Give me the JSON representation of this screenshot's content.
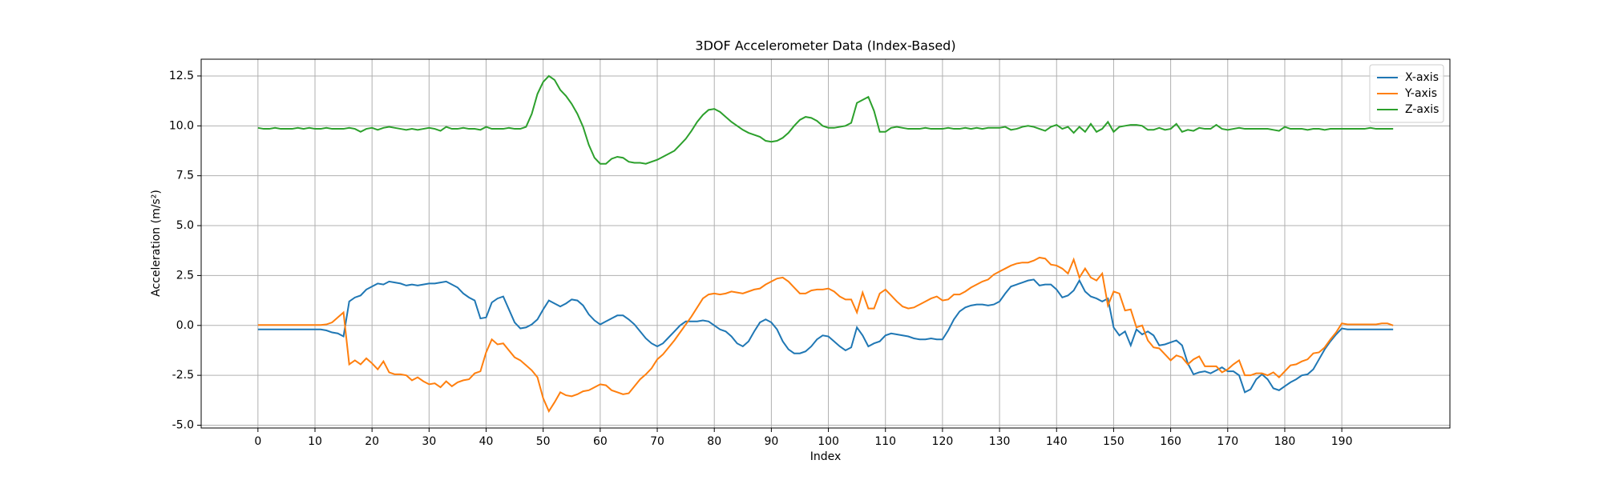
{
  "chart_data": {
    "type": "line",
    "title": "3DOF Accelerometer Data (Index-Based)",
    "x_label": "Index",
    "y_label": "Acceleration (m/s²)",
    "x": [
      0,
      1,
      2,
      3,
      4,
      5,
      6,
      7,
      8,
      9,
      10,
      11,
      12,
      13,
      14,
      15,
      16,
      17,
      18,
      19,
      20,
      21,
      22,
      23,
      24,
      25,
      26,
      27,
      28,
      29,
      30,
      31,
      32,
      33,
      34,
      35,
      36,
      37,
      38,
      39,
      40,
      41,
      42,
      43,
      44,
      45,
      46,
      47,
      48,
      49,
      50,
      51,
      52,
      53,
      54,
      55,
      56,
      57,
      58,
      59,
      60,
      61,
      62,
      63,
      64,
      65,
      66,
      67,
      68,
      69,
      70,
      71,
      72,
      73,
      74,
      75,
      76,
      77,
      78,
      79,
      80,
      81,
      82,
      83,
      84,
      85,
      86,
      87,
      88,
      89,
      90,
      91,
      92,
      93,
      94,
      95,
      96,
      97,
      98,
      99,
      100,
      101,
      102,
      103,
      104,
      105,
      106,
      107,
      108,
      109,
      110,
      111,
      112,
      113,
      114,
      115,
      116,
      117,
      118,
      119,
      120,
      121,
      122,
      123,
      124,
      125,
      126,
      127,
      128,
      129,
      130,
      131,
      132,
      133,
      134,
      135,
      136,
      137,
      138,
      139,
      140,
      141,
      142,
      143,
      144,
      145,
      146,
      147,
      148,
      149,
      150,
      151,
      152,
      153,
      154,
      155,
      156,
      157,
      158,
      159,
      160,
      161,
      162,
      163,
      164,
      165,
      166,
      167,
      168,
      169,
      170,
      171,
      172,
      173,
      174,
      175,
      176,
      177,
      178,
      179,
      180,
      181,
      182,
      183,
      184,
      185,
      186,
      187,
      188,
      189,
      190,
      191,
      192,
      193,
      194,
      195,
      196,
      197,
      198,
      199
    ],
    "series": [
      {
        "name": "X-axis",
        "color": "#1f77b4",
        "values": [
          -0.2,
          -0.2,
          -0.2,
          -0.2,
          -0.2,
          -0.2,
          -0.2,
          -0.2,
          -0.2,
          -0.2,
          -0.2,
          -0.2,
          -0.25,
          -0.35,
          -0.4,
          -0.55,
          1.2,
          1.4,
          1.5,
          1.8,
          1.95,
          2.1,
          2.05,
          2.2,
          2.15,
          2.1,
          2.0,
          2.05,
          2.0,
          2.05,
          2.1,
          2.1,
          2.15,
          2.2,
          2.05,
          1.9,
          1.6,
          1.4,
          1.25,
          0.35,
          0.4,
          1.15,
          1.35,
          1.45,
          0.8,
          0.15,
          -0.15,
          -0.1,
          0.05,
          0.3,
          0.8,
          1.25,
          1.1,
          0.95,
          1.1,
          1.3,
          1.25,
          1.0,
          0.55,
          0.25,
          0.05,
          0.2,
          0.35,
          0.5,
          0.5,
          0.3,
          0.05,
          -0.3,
          -0.65,
          -0.9,
          -1.05,
          -0.9,
          -0.6,
          -0.3,
          0.0,
          0.2,
          0.2,
          0.2,
          0.25,
          0.2,
          0.0,
          -0.2,
          -0.3,
          -0.55,
          -0.9,
          -1.05,
          -0.8,
          -0.3,
          0.15,
          0.3,
          0.15,
          -0.2,
          -0.8,
          -1.2,
          -1.4,
          -1.4,
          -1.3,
          -1.05,
          -0.7,
          -0.5,
          -0.55,
          -0.8,
          -1.05,
          -1.25,
          -1.1,
          -0.1,
          -0.5,
          -1.05,
          -0.9,
          -0.8,
          -0.5,
          -0.4,
          -0.45,
          -0.5,
          -0.55,
          -0.65,
          -0.7,
          -0.7,
          -0.65,
          -0.7,
          -0.7,
          -0.25,
          0.3,
          0.7,
          0.9,
          1.0,
          1.05,
          1.05,
          1.0,
          1.05,
          1.2,
          1.6,
          1.95,
          2.05,
          2.15,
          2.25,
          2.3,
          2.0,
          2.05,
          2.05,
          1.8,
          1.4,
          1.5,
          1.75,
          2.25,
          1.7,
          1.45,
          1.35,
          1.2,
          1.35,
          -0.1,
          -0.5,
          -0.3,
          -1.0,
          -0.2,
          -0.45,
          -0.3,
          -0.5,
          -1.0,
          -0.95,
          -0.85,
          -0.75,
          -1.0,
          -1.9,
          -2.45,
          -2.35,
          -2.3,
          -2.4,
          -2.25,
          -2.1,
          -2.3,
          -2.3,
          -2.5,
          -3.35,
          -3.2,
          -2.7,
          -2.45,
          -2.7,
          -3.15,
          -3.25,
          -3.05,
          -2.85,
          -2.7,
          -2.5,
          -2.45,
          -2.2,
          -1.7,
          -1.2,
          -0.8,
          -0.45,
          -0.15,
          -0.2,
          -0.2,
          -0.2,
          -0.2,
          -0.2,
          -0.2,
          -0.2,
          -0.2,
          -0.2
        ]
      },
      {
        "name": "Y-axis",
        "color": "#ff7f0e",
        "values": [
          0.02,
          0.02,
          0.02,
          0.02,
          0.02,
          0.02,
          0.02,
          0.02,
          0.02,
          0.02,
          0.02,
          0.02,
          0.05,
          0.15,
          0.4,
          0.65,
          -1.95,
          -1.75,
          -1.95,
          -1.65,
          -1.9,
          -2.2,
          -1.8,
          -2.35,
          -2.45,
          -2.45,
          -2.5,
          -2.75,
          -2.6,
          -2.8,
          -2.95,
          -2.9,
          -3.1,
          -2.8,
          -3.05,
          -2.85,
          -2.75,
          -2.7,
          -2.4,
          -2.3,
          -1.35,
          -0.7,
          -0.95,
          -0.9,
          -1.25,
          -1.6,
          -1.75,
          -2.0,
          -2.25,
          -2.6,
          -3.65,
          -4.3,
          -3.85,
          -3.35,
          -3.5,
          -3.55,
          -3.45,
          -3.3,
          -3.25,
          -3.1,
          -2.95,
          -3.0,
          -3.25,
          -3.35,
          -3.45,
          -3.4,
          -3.05,
          -2.7,
          -2.45,
          -2.15,
          -1.7,
          -1.45,
          -1.1,
          -0.75,
          -0.35,
          0.05,
          0.45,
          0.9,
          1.35,
          1.55,
          1.6,
          1.55,
          1.6,
          1.7,
          1.65,
          1.6,
          1.7,
          1.8,
          1.85,
          2.05,
          2.2,
          2.35,
          2.4,
          2.2,
          1.9,
          1.6,
          1.6,
          1.75,
          1.8,
          1.8,
          1.85,
          1.7,
          1.45,
          1.3,
          1.3,
          0.65,
          1.65,
          0.85,
          0.85,
          1.6,
          1.8,
          1.5,
          1.2,
          0.95,
          0.85,
          0.9,
          1.05,
          1.2,
          1.35,
          1.45,
          1.25,
          1.3,
          1.55,
          1.55,
          1.7,
          1.9,
          2.05,
          2.2,
          2.3,
          2.55,
          2.7,
          2.85,
          3.0,
          3.1,
          3.15,
          3.15,
          3.25,
          3.4,
          3.35,
          3.05,
          3.0,
          2.85,
          2.6,
          3.3,
          2.4,
          2.85,
          2.4,
          2.25,
          2.6,
          1.0,
          1.7,
          1.6,
          0.75,
          0.8,
          -0.1,
          0.0,
          -0.75,
          -1.1,
          -1.15,
          -1.45,
          -1.75,
          -1.5,
          -1.6,
          -1.95,
          -1.7,
          -1.55,
          -2.05,
          -2.05,
          -2.05,
          -2.35,
          -2.2,
          -1.95,
          -1.75,
          -2.5,
          -2.5,
          -2.4,
          -2.4,
          -2.5,
          -2.35,
          -2.6,
          -2.3,
          -2.0,
          -1.95,
          -1.8,
          -1.7,
          -1.4,
          -1.35,
          -1.1,
          -0.7,
          -0.35,
          0.1,
          0.05,
          0.05,
          0.05,
          0.05,
          0.05,
          0.05,
          0.1,
          0.1,
          0.0
        ]
      },
      {
        "name": "Z-axis",
        "color": "#2ca02c",
        "values": [
          9.9,
          9.85,
          9.85,
          9.9,
          9.85,
          9.85,
          9.85,
          9.9,
          9.85,
          9.9,
          9.85,
          9.85,
          9.9,
          9.85,
          9.85,
          9.85,
          9.9,
          9.85,
          9.7,
          9.85,
          9.9,
          9.8,
          9.9,
          9.95,
          9.9,
          9.85,
          9.8,
          9.85,
          9.8,
          9.85,
          9.9,
          9.85,
          9.75,
          9.95,
          9.85,
          9.85,
          9.9,
          9.85,
          9.85,
          9.8,
          9.95,
          9.85,
          9.85,
          9.85,
          9.9,
          9.85,
          9.85,
          9.95,
          10.6,
          11.6,
          12.2,
          12.5,
          12.3,
          11.8,
          11.5,
          11.1,
          10.6,
          9.95,
          9.05,
          8.4,
          8.1,
          8.1,
          8.35,
          8.45,
          8.4,
          8.2,
          8.15,
          8.15,
          8.1,
          8.2,
          8.3,
          8.45,
          8.6,
          8.75,
          9.05,
          9.35,
          9.75,
          10.2,
          10.55,
          10.8,
          10.85,
          10.7,
          10.45,
          10.2,
          10.0,
          9.8,
          9.65,
          9.55,
          9.45,
          9.25,
          9.2,
          9.25,
          9.4,
          9.65,
          10.0,
          10.3,
          10.45,
          10.4,
          10.25,
          10.0,
          9.9,
          9.9,
          9.95,
          10.0,
          10.15,
          11.15,
          11.3,
          11.45,
          10.75,
          9.7,
          9.7,
          9.9,
          9.95,
          9.9,
          9.85,
          9.85,
          9.85,
          9.9,
          9.85,
          9.85,
          9.85,
          9.9,
          9.85,
          9.85,
          9.9,
          9.85,
          9.9,
          9.85,
          9.9,
          9.9,
          9.9,
          9.95,
          9.8,
          9.85,
          9.95,
          10.0,
          9.95,
          9.85,
          9.75,
          9.95,
          10.05,
          9.85,
          9.95,
          9.65,
          9.95,
          9.7,
          10.1,
          9.7,
          9.85,
          10.2,
          9.7,
          9.95,
          10.0,
          10.05,
          10.05,
          10.0,
          9.8,
          9.8,
          9.9,
          9.8,
          9.85,
          10.1,
          9.7,
          9.8,
          9.75,
          9.9,
          9.85,
          9.85,
          10.05,
          9.85,
          9.8,
          9.85,
          9.9,
          9.85,
          9.85,
          9.85,
          9.85,
          9.85,
          9.8,
          9.75,
          9.95,
          9.85,
          9.85,
          9.85,
          9.8,
          9.85,
          9.85,
          9.8,
          9.85,
          9.85,
          9.85,
          9.85,
          9.85,
          9.85,
          9.85,
          9.9,
          9.85,
          9.85,
          9.85,
          9.85
        ]
      }
    ],
    "xlim": [
      -9.95,
      208.95
    ],
    "ylim": [
      -5.14,
      13.34
    ],
    "xticks": [
      0,
      10,
      20,
      30,
      40,
      50,
      60,
      70,
      80,
      90,
      100,
      110,
      120,
      130,
      140,
      150,
      160,
      170,
      180,
      190
    ],
    "yticks": [
      {
        "value": -5,
        "label": "-5.0"
      },
      -2.5,
      {
        "value": 0,
        "label": "0.0"
      },
      2.5,
      {
        "value": 5,
        "label": "5.0"
      },
      7.5,
      {
        "value": 10,
        "label": "10.0"
      },
      12.5
    ],
    "grid": true,
    "legend": "upper right"
  }
}
